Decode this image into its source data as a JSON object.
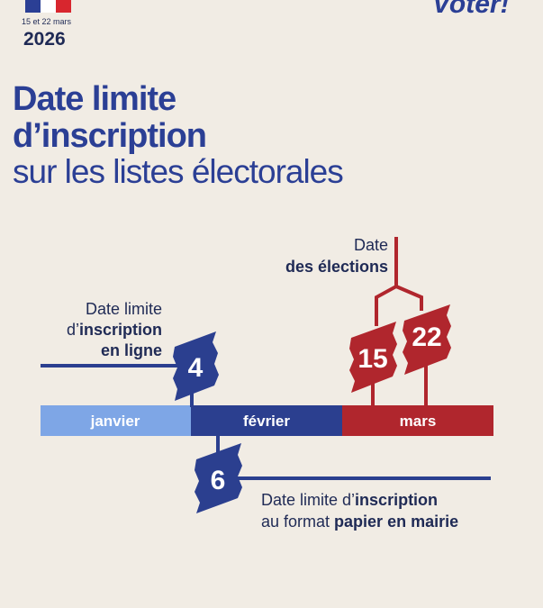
{
  "header": {
    "dates": "15 et 22 mars",
    "year": "2026",
    "slogan": "Voter!"
  },
  "title": {
    "line1": "Date limite",
    "line2": "d’inscription",
    "line3": "sur les listes électorales"
  },
  "timeline": {
    "months": [
      "janvier",
      "février",
      "mars"
    ]
  },
  "elections": {
    "line1": "Date",
    "line2": "des élections",
    "days": [
      15,
      22
    ]
  },
  "online": {
    "line1": "Date limite",
    "line2_prefix": "d’",
    "line2_bold": "inscription",
    "line3": "en ligne",
    "day": 4
  },
  "paper": {
    "line1_prefix": "Date limite d’",
    "line1_bold": "inscription",
    "line2_prefix": "au format ",
    "line2_bold": "papier en mairie",
    "day": 6
  }
}
